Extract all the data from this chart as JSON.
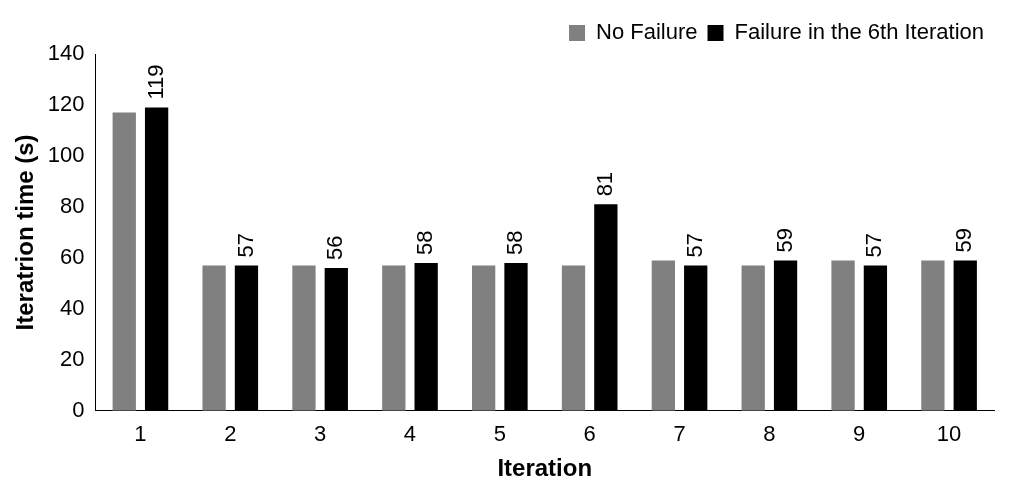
{
  "chart_data": {
    "type": "bar",
    "xlabel": "Iteration",
    "ylabel": "Iteratrion time (s)",
    "categories": [
      "1",
      "2",
      "3",
      "4",
      "5",
      "6",
      "7",
      "8",
      "9",
      "10"
    ],
    "series": [
      {
        "name": "No Failure",
        "color": "#808080",
        "values": [
          117,
          57,
          57,
          57,
          57,
          57,
          59,
          57,
          59,
          59
        ]
      },
      {
        "name": "Failure in the 6th Iteration",
        "color": "#000000",
        "values": [
          119,
          57,
          56,
          58,
          58,
          81,
          57,
          59,
          57,
          59
        ],
        "value_labels": [
          "119",
          "57",
          "56",
          "58",
          "58",
          "81",
          "57",
          "59",
          "57",
          "59"
        ]
      }
    ],
    "ylim": [
      0,
      140
    ],
    "yticks": [
      0,
      20,
      40,
      60,
      80,
      100,
      120,
      140
    ],
    "grid": false,
    "legend": "top right"
  }
}
